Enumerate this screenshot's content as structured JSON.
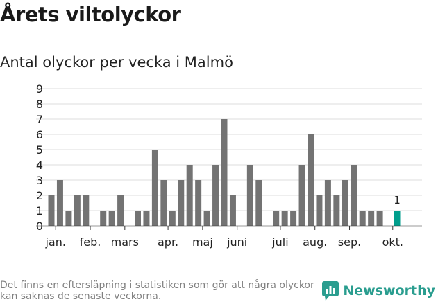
{
  "title": "Årets viltolyckor",
  "subtitle": "Antal olyckor per vecka i Malmö",
  "footer_note": "Det finns en eftersläpning i statistiken som gör att några olyckor kan saknas de senaste veckorna.",
  "brand": {
    "name": "Newsworthy",
    "icon": "newsworthy-logo-icon"
  },
  "colors": {
    "bar": "#737373",
    "highlight": "#009e8c",
    "grid": "#dddddd",
    "axis": "#333333",
    "text": "#222222"
  },
  "chart_data": {
    "type": "bar",
    "title": "Antal olyckor per vecka i Malmö",
    "xlabel": "",
    "ylabel": "",
    "ylim": [
      0,
      9
    ],
    "yticks": [
      0,
      1,
      2,
      3,
      4,
      5,
      6,
      7,
      8,
      9
    ],
    "weeks": [
      1,
      2,
      3,
      4,
      5,
      6,
      7,
      8,
      9,
      10,
      11,
      12,
      13,
      14,
      15,
      16,
      17,
      18,
      19,
      20,
      21,
      22,
      23,
      24,
      25,
      26,
      27,
      28,
      29,
      30,
      31,
      32,
      33,
      34,
      35,
      36,
      37,
      38,
      39,
      40,
      41
    ],
    "values": [
      2,
      3,
      1,
      2,
      2,
      0,
      1,
      1,
      2,
      0,
      1,
      1,
      5,
      3,
      1,
      3,
      4,
      3,
      1,
      4,
      7,
      2,
      0,
      4,
      3,
      0,
      1,
      1,
      1,
      4,
      6,
      2,
      3,
      2,
      3,
      4,
      1,
      1,
      1,
      0,
      1
    ],
    "highlight_index": 40,
    "highlight_label": "1",
    "month_ticks": [
      {
        "label": "jan.",
        "week": 1.5
      },
      {
        "label": "feb.",
        "week": 5.5
      },
      {
        "label": "mars",
        "week": 9.5
      },
      {
        "label": "apr.",
        "week": 14.5
      },
      {
        "label": "maj",
        "week": 18.5
      },
      {
        "label": "juni",
        "week": 22.5
      },
      {
        "label": "juli",
        "week": 27.5
      },
      {
        "label": "aug.",
        "week": 31.5
      },
      {
        "label": "sep.",
        "week": 35.5
      },
      {
        "label": "okt.",
        "week": 40.5
      }
    ],
    "grid": true
  }
}
